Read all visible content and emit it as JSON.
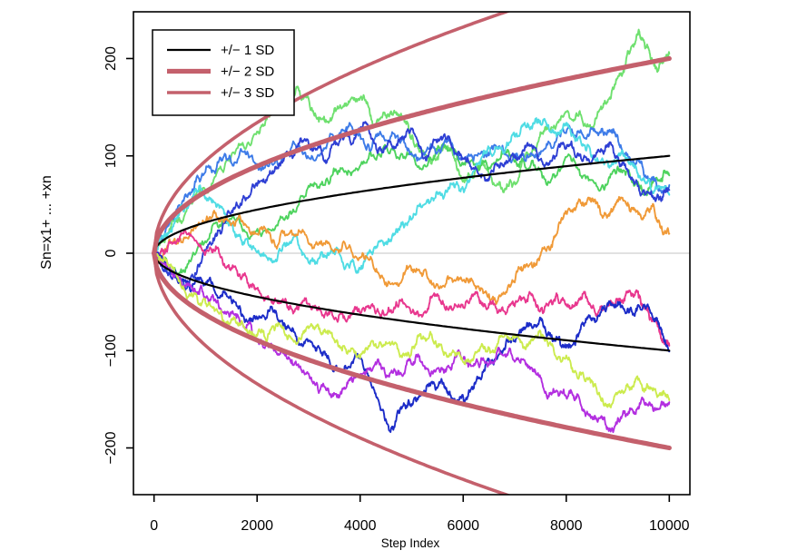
{
  "chart_data": {
    "type": "line",
    "title": "",
    "xlabel": "Step Index",
    "ylabel": "Sn=x1+ ... +xn",
    "x_ticks": [
      0,
      2000,
      4000,
      6000,
      8000,
      10000
    ],
    "y_ticks": [
      {
        "value": -200,
        "label": "−200"
      },
      {
        "value": -100,
        "label": "−100"
      },
      {
        "value": 0,
        "label": "0"
      },
      {
        "value": 100,
        "label": "100"
      },
      {
        "value": 200,
        "label": "200"
      }
    ],
    "xlim": [
      -400,
      10400
    ],
    "ylim": [
      -248,
      248
    ],
    "grid": false,
    "legend_position": "top-left",
    "zero_line": {
      "y": 0,
      "color": "#c3c3c3",
      "width": 1
    },
    "sd_curves": [
      {
        "label": "+/− 1 SD",
        "k": 1,
        "color": "#000000",
        "width": 2.2
      },
      {
        "label": "+/− 2 SD",
        "k": 2,
        "color": "#c4606c",
        "width": 5.2
      },
      {
        "label": "+/− 3 SD",
        "k": 3,
        "color": "#c4606c",
        "width": 3.6
      }
    ],
    "walks": [
      {
        "name": "walk-lightgreen",
        "color": "#6fe06f",
        "seed": 11,
        "points": [
          [
            0,
            0
          ],
          [
            300,
            25
          ],
          [
            800,
            60
          ],
          [
            1400,
            95
          ],
          [
            2000,
            125
          ],
          [
            2400,
            150
          ],
          [
            2800,
            170
          ],
          [
            3200,
            135
          ],
          [
            3600,
            150
          ],
          [
            4000,
            160
          ],
          [
            4300,
            130
          ],
          [
            4700,
            145
          ],
          [
            5000,
            120
          ],
          [
            5400,
            95
          ],
          [
            5700,
            110
          ],
          [
            6000,
            75
          ],
          [
            6400,
            90
          ],
          [
            6800,
            65
          ],
          [
            7200,
            100
          ],
          [
            7600,
            130
          ],
          [
            8000,
            145
          ],
          [
            8400,
            130
          ],
          [
            8800,
            155
          ],
          [
            9100,
            185
          ],
          [
            9400,
            228
          ],
          [
            9600,
            210
          ],
          [
            9800,
            190
          ],
          [
            10000,
            205
          ]
        ]
      },
      {
        "name": "walk-green",
        "color": "#4ed35e",
        "seed": 22,
        "points": [
          [
            0,
            0
          ],
          [
            400,
            -15
          ],
          [
            900,
            10
          ],
          [
            1500,
            35
          ],
          [
            2100,
            20
          ],
          [
            2700,
            45
          ],
          [
            3300,
            70
          ],
          [
            3900,
            85
          ],
          [
            4500,
            110
          ],
          [
            5100,
            90
          ],
          [
            5700,
            105
          ],
          [
            6300,
            85
          ],
          [
            6900,
            100
          ],
          [
            7500,
            85
          ],
          [
            8100,
            95
          ],
          [
            8700,
            70
          ],
          [
            9100,
            85
          ],
          [
            9500,
            60
          ],
          [
            9800,
            75
          ],
          [
            10000,
            80
          ]
        ]
      },
      {
        "name": "walk-dodgerblue",
        "color": "#3d7be8",
        "seed": 33,
        "points": [
          [
            0,
            0
          ],
          [
            300,
            30
          ],
          [
            700,
            60
          ],
          [
            1200,
            85
          ],
          [
            1700,
            105
          ],
          [
            2200,
            90
          ],
          [
            2700,
            115
          ],
          [
            3200,
            100
          ],
          [
            3700,
            125
          ],
          [
            4200,
            105
          ],
          [
            4700,
            120
          ],
          [
            5200,
            100
          ],
          [
            5700,
            115
          ],
          [
            6200,
            95
          ],
          [
            6700,
            110
          ],
          [
            7200,
            95
          ],
          [
            7700,
            110
          ],
          [
            8200,
            120
          ],
          [
            8700,
            128
          ],
          [
            9000,
            120
          ],
          [
            9300,
            95
          ],
          [
            9600,
            75
          ],
          [
            9800,
            65
          ],
          [
            10000,
            70
          ]
        ]
      },
      {
        "name": "walk-cyan",
        "color": "#4fdce4",
        "seed": 44,
        "points": [
          [
            0,
            0
          ],
          [
            250,
            20
          ],
          [
            500,
            45
          ],
          [
            800,
            65
          ],
          [
            1100,
            55
          ],
          [
            1400,
            35
          ],
          [
            1800,
            15
          ],
          [
            2200,
            -5
          ],
          [
            2600,
            10
          ],
          [
            3000,
            -10
          ],
          [
            3400,
            0
          ],
          [
            3900,
            -15
          ],
          [
            4300,
            5
          ],
          [
            4700,
            25
          ],
          [
            5100,
            45
          ],
          [
            5500,
            62
          ],
          [
            5900,
            70
          ],
          [
            6300,
            92
          ],
          [
            6700,
            108
          ],
          [
            7100,
            122
          ],
          [
            7400,
            138
          ],
          [
            7700,
            124
          ],
          [
            8000,
            134
          ],
          [
            8400,
            108
          ],
          [
            8800,
            94
          ],
          [
            9100,
            104
          ],
          [
            9400,
            78
          ],
          [
            9700,
            64
          ],
          [
            10000,
            60
          ]
        ]
      },
      {
        "name": "walk-royalblue",
        "color": "#2e3fd4",
        "seed": 55,
        "points": [
          [
            0,
            0
          ],
          [
            300,
            -20
          ],
          [
            600,
            -35
          ],
          [
            900,
            -10
          ],
          [
            1300,
            20
          ],
          [
            1700,
            50
          ],
          [
            2100,
            75
          ],
          [
            2500,
            95
          ],
          [
            2900,
            115
          ],
          [
            3300,
            95
          ],
          [
            3700,
            120
          ],
          [
            4100,
            135
          ],
          [
            4500,
            110
          ],
          [
            4900,
            125
          ],
          [
            5300,
            100
          ],
          [
            5700,
            120
          ],
          [
            6100,
            95
          ],
          [
            6500,
            75
          ],
          [
            6900,
            95
          ],
          [
            7300,
            110
          ],
          [
            7700,
            95
          ],
          [
            8100,
            115
          ],
          [
            8500,
            95
          ],
          [
            8900,
            110
          ],
          [
            9200,
            85
          ],
          [
            9500,
            65
          ],
          [
            9800,
            55
          ],
          [
            10000,
            65
          ]
        ]
      },
      {
        "name": "walk-orange",
        "color": "#f09a38",
        "seed": 66,
        "points": [
          [
            0,
            0
          ],
          [
            400,
            15
          ],
          [
            900,
            30
          ],
          [
            1400,
            38
          ],
          [
            1900,
            22
          ],
          [
            2400,
            8
          ],
          [
            2900,
            22
          ],
          [
            3400,
            10
          ],
          [
            4000,
            -5
          ],
          [
            4500,
            -30
          ],
          [
            5000,
            -18
          ],
          [
            5500,
            -32
          ],
          [
            6000,
            -28
          ],
          [
            6500,
            -42
          ],
          [
            7000,
            -30
          ],
          [
            7400,
            -12
          ],
          [
            7800,
            18
          ],
          [
            8200,
            48
          ],
          [
            8500,
            55
          ],
          [
            8800,
            38
          ],
          [
            9100,
            55
          ],
          [
            9400,
            40
          ],
          [
            9700,
            48
          ],
          [
            10000,
            20
          ]
        ]
      },
      {
        "name": "walk-deeppink",
        "color": "#e8378e",
        "seed": 77,
        "points": [
          [
            0,
            0
          ],
          [
            300,
            12
          ],
          [
            700,
            18
          ],
          [
            1100,
            5
          ],
          [
            1500,
            -15
          ],
          [
            1900,
            -35
          ],
          [
            2300,
            -50
          ],
          [
            2700,
            -62
          ],
          [
            3100,
            -55
          ],
          [
            3500,
            -68
          ],
          [
            3900,
            -55
          ],
          [
            4300,
            -62
          ],
          [
            4700,
            -50
          ],
          [
            5100,
            -60
          ],
          [
            5500,
            -42
          ],
          [
            5900,
            -55
          ],
          [
            6300,
            -45
          ],
          [
            6700,
            -58
          ],
          [
            7100,
            -44
          ],
          [
            7500,
            -58
          ],
          [
            7800,
            -44
          ],
          [
            8100,
            -56
          ],
          [
            8400,
            -46
          ],
          [
            8700,
            -56
          ],
          [
            9000,
            -48
          ],
          [
            9300,
            -44
          ],
          [
            9500,
            -55
          ],
          [
            9700,
            -70
          ],
          [
            9850,
            -88
          ],
          [
            10000,
            -95
          ]
        ]
      },
      {
        "name": "walk-blue",
        "color": "#1c2cc8",
        "seed": 88,
        "points": [
          [
            0,
            0
          ],
          [
            300,
            -18
          ],
          [
            700,
            -38
          ],
          [
            1100,
            -28
          ],
          [
            1500,
            -48
          ],
          [
            1900,
            -68
          ],
          [
            2300,
            -58
          ],
          [
            2700,
            -78
          ],
          [
            3100,
            -95
          ],
          [
            3500,
            -118
          ],
          [
            3900,
            -105
          ],
          [
            4200,
            -130
          ],
          [
            4550,
            -178
          ],
          [
            4800,
            -160
          ],
          [
            5100,
            -150
          ],
          [
            5400,
            -132
          ],
          [
            5700,
            -142
          ],
          [
            6000,
            -148
          ],
          [
            6300,
            -128
          ],
          [
            6600,
            -112
          ],
          [
            6900,
            -88
          ],
          [
            7200,
            -78
          ],
          [
            7500,
            -68
          ],
          [
            7800,
            -88
          ],
          [
            8100,
            -95
          ],
          [
            8400,
            -68
          ],
          [
            8700,
            -55
          ],
          [
            9000,
            -50
          ],
          [
            9300,
            -62
          ],
          [
            9600,
            -55
          ],
          [
            9800,
            -72
          ],
          [
            10000,
            -101
          ]
        ]
      },
      {
        "name": "walk-purple",
        "color": "#b32fe0",
        "seed": 99,
        "points": [
          [
            0,
            0
          ],
          [
            300,
            -15
          ],
          [
            700,
            -32
          ],
          [
            1100,
            -48
          ],
          [
            1500,
            -62
          ],
          [
            1900,
            -80
          ],
          [
            2300,
            -95
          ],
          [
            2700,
            -115
          ],
          [
            3100,
            -132
          ],
          [
            3550,
            -148
          ],
          [
            3900,
            -128
          ],
          [
            4300,
            -112
          ],
          [
            4700,
            -125
          ],
          [
            5100,
            -105
          ],
          [
            5500,
            -118
          ],
          [
            5900,
            -100
          ],
          [
            6300,
            -115
          ],
          [
            6700,
            -98
          ],
          [
            7100,
            -112
          ],
          [
            7500,
            -128
          ],
          [
            7900,
            -142
          ],
          [
            8300,
            -158
          ],
          [
            8600,
            -172
          ],
          [
            8900,
            -182
          ],
          [
            9200,
            -165
          ],
          [
            9500,
            -150
          ],
          [
            9700,
            -162
          ],
          [
            10000,
            -153
          ]
        ]
      },
      {
        "name": "walk-yellowgreen",
        "color": "#cceb4e",
        "seed": 123,
        "points": [
          [
            0,
            0
          ],
          [
            400,
            -20
          ],
          [
            800,
            -42
          ],
          [
            1200,
            -58
          ],
          [
            1600,
            -72
          ],
          [
            2000,
            -85
          ],
          [
            2400,
            -75
          ],
          [
            2800,
            -90
          ],
          [
            3200,
            -78
          ],
          [
            3600,
            -95
          ],
          [
            4000,
            -108
          ],
          [
            4400,
            -92
          ],
          [
            4800,
            -105
          ],
          [
            5200,
            -88
          ],
          [
            5600,
            -100
          ],
          [
            6000,
            -112
          ],
          [
            6400,
            -98
          ],
          [
            6800,
            -85
          ],
          [
            7200,
            -98
          ],
          [
            7600,
            -88
          ],
          [
            8000,
            -105
          ],
          [
            8400,
            -128
          ],
          [
            8800,
            -158
          ],
          [
            9100,
            -142
          ],
          [
            9400,
            -130
          ],
          [
            9700,
            -140
          ],
          [
            10000,
            -151
          ]
        ]
      }
    ]
  }
}
